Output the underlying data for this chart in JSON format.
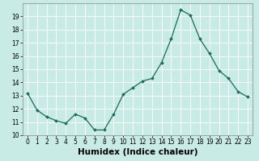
{
  "x": [
    0,
    1,
    2,
    3,
    4,
    5,
    6,
    7,
    8,
    9,
    10,
    11,
    12,
    13,
    14,
    15,
    16,
    17,
    18,
    19,
    20,
    21,
    22,
    23
  ],
  "y": [
    13.2,
    11.9,
    11.4,
    11.1,
    10.9,
    11.6,
    11.3,
    10.4,
    10.4,
    11.6,
    13.1,
    13.6,
    14.1,
    14.3,
    15.5,
    17.3,
    19.5,
    19.1,
    17.3,
    16.2,
    14.9,
    14.3,
    13.3,
    12.9
  ],
  "xlabel": "Humidex (Indice chaleur)",
  "ylim": [
    10,
    20
  ],
  "xlim": [
    -0.5,
    23.5
  ],
  "yticks": [
    10,
    11,
    12,
    13,
    14,
    15,
    16,
    17,
    18,
    19
  ],
  "xticks": [
    0,
    1,
    2,
    3,
    4,
    5,
    6,
    7,
    8,
    9,
    10,
    11,
    12,
    13,
    14,
    15,
    16,
    17,
    18,
    19,
    20,
    21,
    22,
    23
  ],
  "line_color": "#1a6b5a",
  "marker_color": "#1a6b5a",
  "bg_color": "#c8ebe6",
  "grid_color": "#b0d8d4",
  "tick_fontsize": 5.5,
  "label_fontsize": 7.5
}
